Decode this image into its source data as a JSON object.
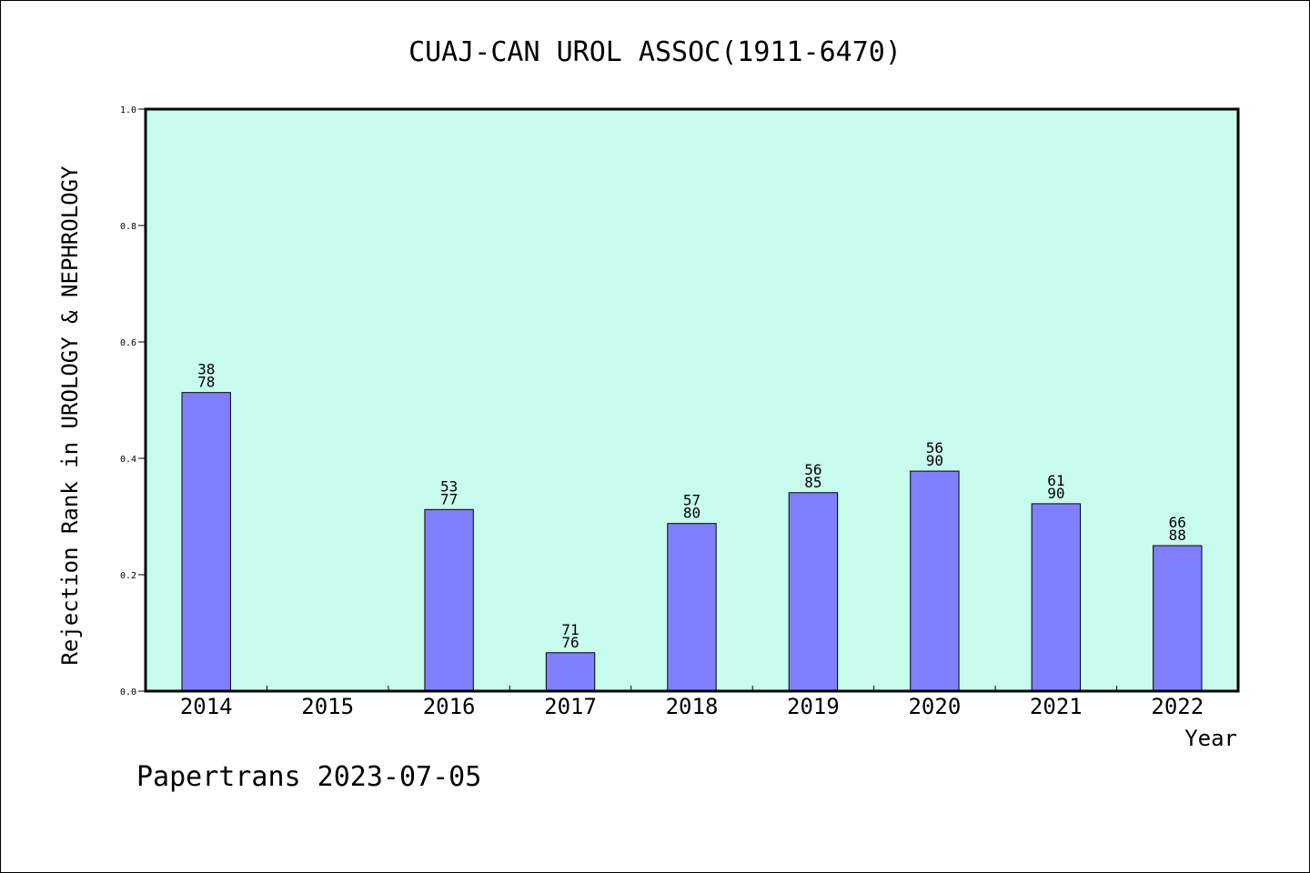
{
  "chart_data": {
    "type": "bar",
    "title": "CUAJ-CAN UROL ASSOC(1911-6470)",
    "xlabel": "Year",
    "ylabel": "Rejection Rank in UROLOGY & NEPHROLOGY",
    "ylim": [
      0,
      1.0
    ],
    "yticks": [
      "0.0",
      "0.2",
      "0.4",
      "0.6",
      "0.8",
      "1.0"
    ],
    "categories": [
      "2014",
      "2015",
      "2016",
      "2017",
      "2018",
      "2019",
      "2020",
      "2021",
      "2022"
    ],
    "values": [
      0.513,
      null,
      0.312,
      0.066,
      0.288,
      0.341,
      0.378,
      0.322,
      0.25
    ],
    "bar_labels": [
      [
        "38",
        "78"
      ],
      null,
      [
        "53",
        "77"
      ],
      [
        "71",
        "76"
      ],
      [
        "57",
        "80"
      ],
      [
        "56",
        "85"
      ],
      [
        "56",
        "90"
      ],
      [
        "61",
        "90"
      ],
      [
        "66",
        "88"
      ]
    ],
    "colors": {
      "plot_bg": "#c8fcee",
      "bar": "#8080ff",
      "bar_edge": "#000000"
    },
    "grid": false,
    "legend": "none"
  },
  "footer": {
    "text": "Papertrans 2023-07-05"
  }
}
